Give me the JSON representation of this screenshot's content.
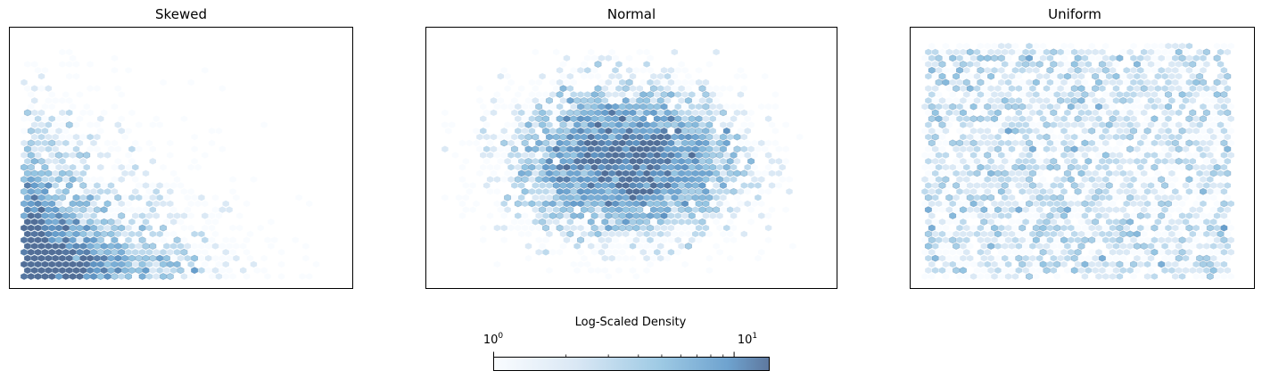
{
  "chart_data": [
    {
      "type": "hexbin",
      "title": "Skewed",
      "distribution": "skewed",
      "xlabel": "",
      "ylabel": "",
      "axis_ticks": "none",
      "colormap": "Blues",
      "color_scale": "log",
      "density_peak": "bottom-left corner",
      "counts_range": [
        1,
        14
      ]
    },
    {
      "type": "hexbin",
      "title": "Normal",
      "distribution": "normal",
      "xlabel": "",
      "ylabel": "",
      "axis_ticks": "none",
      "colormap": "Blues",
      "color_scale": "log",
      "density_peak": "center",
      "counts_range": [
        1,
        14
      ]
    },
    {
      "type": "hexbin",
      "title": "Uniform",
      "distribution": "uniform",
      "xlabel": "",
      "ylabel": "",
      "axis_ticks": "none",
      "colormap": "Blues",
      "color_scale": "log",
      "density_peak": "none (even)",
      "counts_range": [
        1,
        6
      ]
    }
  ],
  "colorbar": {
    "label": "Log-Scaled Density",
    "scale": "log",
    "range": [
      1,
      14
    ],
    "major_ticks": [
      {
        "value": 1,
        "base": "10",
        "exp": "0"
      },
      {
        "value": 10,
        "base": "10",
        "exp": "1"
      }
    ],
    "minor_ticks": [
      2,
      3,
      4,
      5,
      6,
      7,
      8,
      9
    ],
    "colors": [
      "#f7fbff",
      "#c6dbef",
      "#6baed6",
      "#2171b5",
      "#08306b"
    ]
  }
}
